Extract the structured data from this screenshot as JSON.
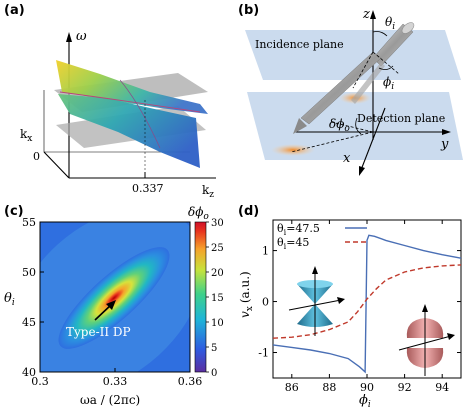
{
  "panels": {
    "a": {
      "label": "(a)",
      "axis_omega": "ω",
      "axis_kx": "k",
      "axis_kx_sub": "x",
      "axis_kz": "k",
      "axis_kz_sub": "z",
      "tick_zero": "0",
      "tick_337": "0.337"
    },
    "b": {
      "label": "(b)",
      "incidence_plane": "Incidence plane",
      "detection_plane": "Detection plane",
      "axis_z": "z",
      "axis_y": "y",
      "axis_x": "x",
      "theta_sym": "θ",
      "theta_sub": "i",
      "phi_sym": "ϕ",
      "phi_sub": "i",
      "dphi_sym": "δϕ",
      "dphi_sub": "o"
    },
    "c": {
      "label": "(c)",
      "annotation": "Type-II DP",
      "colorbar_title_sym": "δϕ",
      "colorbar_title_sub": "o",
      "ylabel_sym": "θ",
      "ylabel_sub": "i",
      "xlabel": "ωa / (2πc)",
      "xticks": [
        "0.3",
        "0.33",
        "0.36"
      ],
      "yticks": [
        "40",
        "45",
        "50",
        "55"
      ],
      "colorbar_ticks": [
        "0",
        "5",
        "10",
        "15",
        "20",
        "25",
        "30"
      ]
    },
    "d": {
      "label": "(d)",
      "ylabel_sym": "v",
      "ylabel_sub": "x",
      "ylabel_unit": "(a.u.)",
      "xlabel_sym": "ϕ",
      "xlabel_sub": "i",
      "legend": [
        {
          "sym": "θ",
          "sub": "i",
          "val": "=47.5",
          "color": "#4a6fb5",
          "style": "solid"
        },
        {
          "sym": "θ",
          "sub": "i",
          "val": "=45",
          "color": "#c0392b",
          "style": "dashed"
        }
      ],
      "xticks": [
        "86",
        "88",
        "90",
        "92",
        "94"
      ],
      "yticks": [
        "-1",
        "0",
        "1"
      ]
    }
  },
  "chart_data": [
    {
      "type": "heatmap",
      "panel": "c",
      "xlabel": "ωa / (2πc)",
      "ylabel": "θi",
      "xlim": [
        0.3,
        0.36
      ],
      "ylim": [
        40,
        55
      ],
      "colorbar_label": "δϕo",
      "colorbar_range": [
        0,
        30
      ],
      "peak": {
        "x": 0.331,
        "y": 47.5,
        "value": 30
      },
      "annotation": "Type-II DP"
    },
    {
      "type": "line",
      "panel": "d",
      "xlabel": "ϕi",
      "ylabel": "vx (a.u.)",
      "xlim": [
        85,
        95
      ],
      "ylim": [
        -1.5,
        1.6
      ],
      "series": [
        {
          "name": "θi=47.5",
          "x": [
            85,
            86,
            87,
            88,
            89,
            89.6,
            89.9,
            90.0,
            90.1,
            90.4,
            91,
            92,
            93,
            94,
            95
          ],
          "y": [
            -0.85,
            -0.9,
            -0.95,
            -1.02,
            -1.12,
            -1.28,
            -1.38,
            1.2,
            1.3,
            1.28,
            1.2,
            1.1,
            1.0,
            0.92,
            0.85
          ]
        },
        {
          "name": "θi=45",
          "x": [
            85,
            86,
            87,
            88,
            89,
            89.5,
            90,
            90.5,
            91,
            92,
            93,
            94,
            95
          ],
          "y": [
            -0.72,
            -0.7,
            -0.65,
            -0.55,
            -0.4,
            -0.2,
            0.05,
            0.25,
            0.42,
            0.58,
            0.66,
            0.7,
            0.72
          ]
        }
      ]
    }
  ]
}
